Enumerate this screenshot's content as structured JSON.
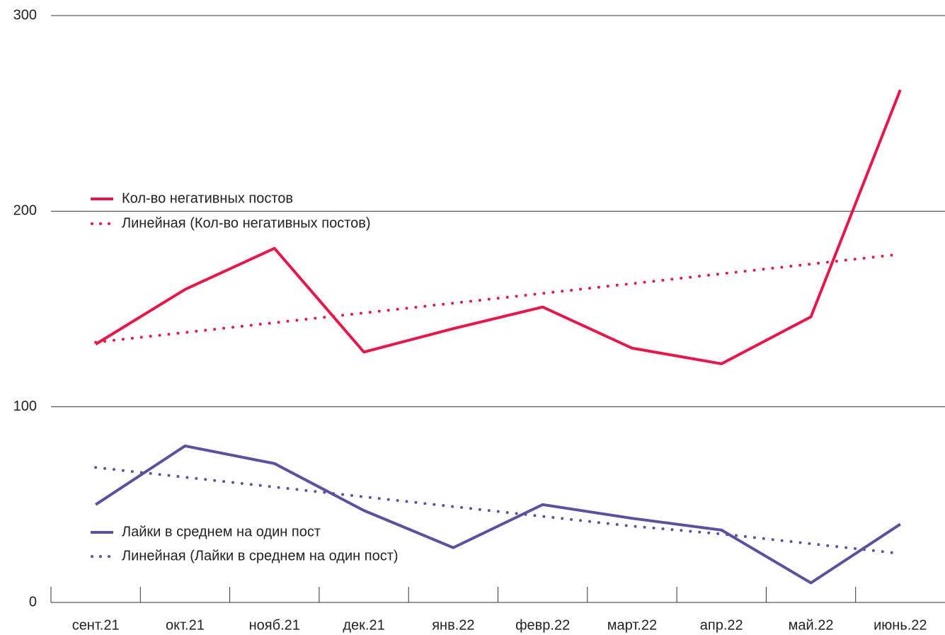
{
  "chart_data": {
    "type": "line",
    "categories": [
      "сент.21",
      "окт.21",
      "нояб.21",
      "дек.21",
      "янв.22",
      "февр.22",
      "март.22",
      "апр.22",
      "май.22",
      "июнь.22"
    ],
    "series": [
      {
        "name": "Кол-во негативных постов",
        "color": "#e8174a",
        "linestyle": "solid",
        "values": [
          132,
          160,
          181,
          128,
          140,
          151,
          130,
          122,
          146,
          262
        ]
      },
      {
        "name": "Линейная (Кол-во негативных постов)",
        "color": "#e8174a",
        "linestyle": "dotted",
        "values": [
          133,
          138,
          143,
          148,
          153,
          158,
          163,
          168,
          173,
          178
        ]
      },
      {
        "name": "Лайки в среднем на один пост",
        "color": "#5b519f",
        "linestyle": "solid",
        "values": [
          50,
          80,
          71,
          47,
          28,
          50,
          43,
          37,
          10,
          40
        ]
      },
      {
        "name": "Линейная (Лайки в среднем на один пост)",
        "color": "#5b519f",
        "linestyle": "dotted",
        "values": [
          69,
          64,
          59,
          54,
          49,
          44,
          39,
          35,
          30,
          25
        ]
      }
    ],
    "ylim": [
      0,
      300
    ],
    "yticks": [
      0,
      100,
      200,
      300
    ],
    "grid": true
  }
}
